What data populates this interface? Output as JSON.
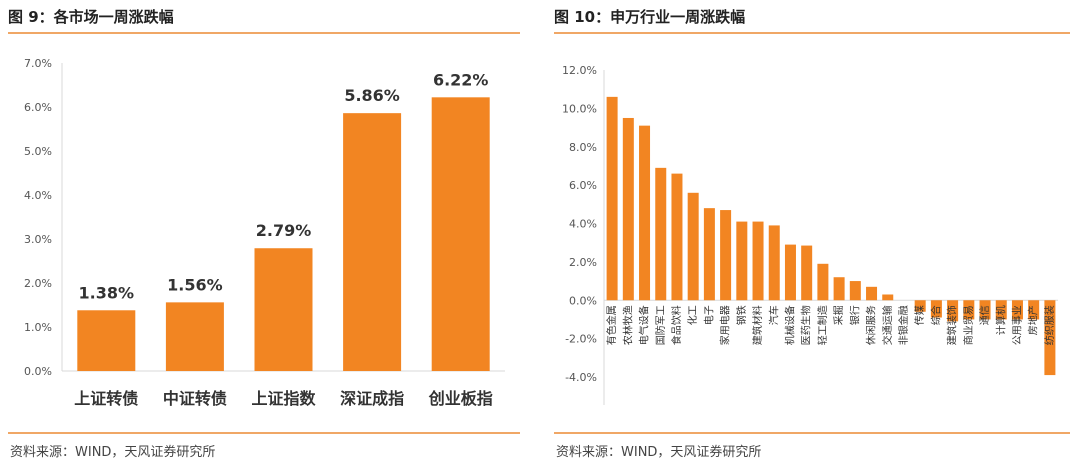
{
  "left": {
    "title": "图 9：各市场一周涨跌幅",
    "source": "资料来源：WIND，天风证券研究所"
  },
  "right": {
    "title": "图 10：申万行业一周涨跌幅",
    "source": "资料来源：WIND，天风证券研究所"
  },
  "colors": {
    "bar": "#f28522",
    "rule": "#f0a766",
    "axis": "#d9d9d9"
  },
  "chart_data": [
    {
      "type": "bar",
      "categories": [
        "上证转债",
        "中证转债",
        "上证指数",
        "深证成指",
        "创业板指"
      ],
      "values": [
        1.38,
        1.56,
        2.79,
        5.86,
        6.22
      ],
      "data_labels": [
        "1.38%",
        "1.56%",
        "2.79%",
        "5.86%",
        "6.22%"
      ],
      "ylim": [
        0,
        7
      ],
      "yticks": [
        "0.0%",
        "1.0%",
        "2.0%",
        "3.0%",
        "4.0%",
        "5.0%",
        "6.0%",
        "7.0%"
      ],
      "grid": false
    },
    {
      "type": "bar",
      "categories": [
        "有色金属",
        "农林牧渔",
        "电气设备",
        "国防军工",
        "食品饮料",
        "化工",
        "电子",
        "家用电器",
        "钢铁",
        "建筑材料",
        "汽车",
        "机械设备",
        "医药生物",
        "轻工制造",
        "采掘",
        "银行",
        "休闲服务",
        "交通运输",
        "非银金融",
        "传媒",
        "综合",
        "建筑装饰",
        "商业贸易",
        "通信",
        "计算机",
        "公用事业",
        "房地产",
        "纺织服装"
      ],
      "values": [
        10.6,
        9.5,
        9.1,
        6.9,
        6.6,
        5.6,
        4.8,
        4.7,
        4.1,
        4.1,
        3.9,
        2.9,
        2.85,
        1.9,
        1.2,
        1.0,
        0.7,
        0.3,
        0.0,
        -0.6,
        -0.9,
        -1.1,
        -1.0,
        -1.0,
        -1.0,
        -1.0,
        -1.0,
        -3.9
      ],
      "ylim": [
        -4,
        12
      ],
      "yticks": [
        "-4.0%",
        "-2.0%",
        "0.0%",
        "2.0%",
        "4.0%",
        "6.0%",
        "8.0%",
        "10.0%",
        "12.0%"
      ],
      "grid": false
    }
  ]
}
